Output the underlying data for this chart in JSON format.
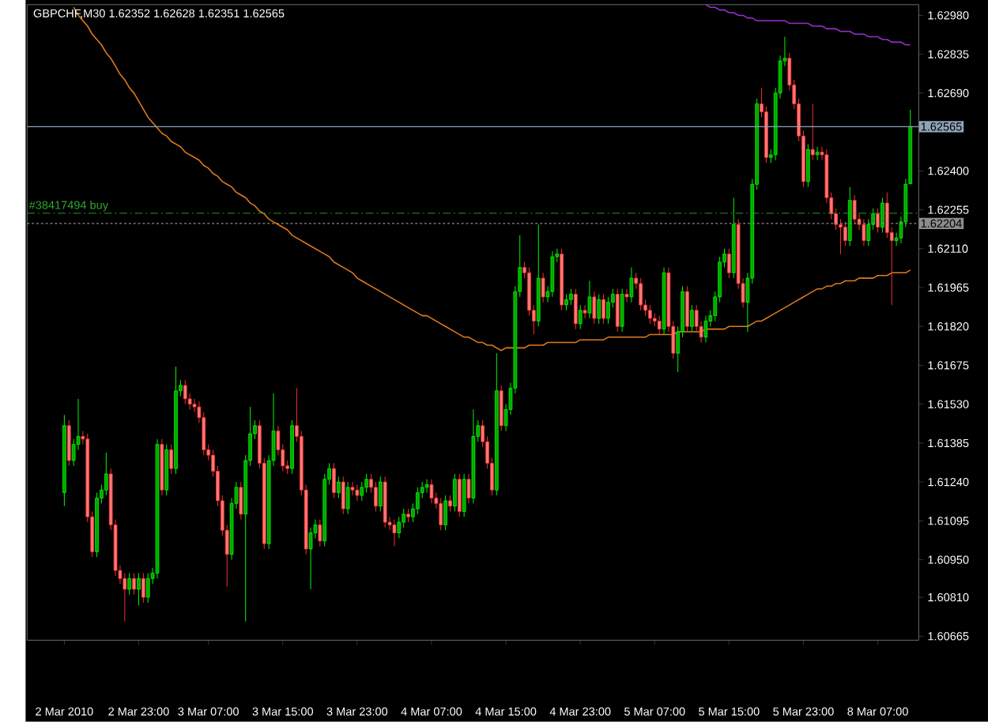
{
  "chart_data": {
    "type": "candlestick",
    "title": "GBPCHF,M30  1.62352 1.62628 1.62351 1.62565",
    "categories": [
      "2 Mar 2010",
      null,
      null,
      null,
      null,
      null,
      null,
      null,
      null,
      null,
      null,
      null,
      null,
      null,
      null,
      null,
      "2 Mar 23:00",
      null,
      null,
      null,
      null,
      null,
      null,
      null,
      null,
      null,
      null,
      null,
      null,
      null,
      null,
      "3 Mar 07:00",
      null,
      null,
      null,
      null,
      null,
      null,
      null,
      null,
      null,
      null,
      null,
      null,
      null,
      null,
      null,
      "3 Mar 15:00",
      null,
      null,
      null,
      null,
      null,
      null,
      null,
      null,
      null,
      null,
      null,
      null,
      null,
      null,
      null,
      "3 Mar 23:00",
      null,
      null,
      null,
      null,
      null,
      null,
      null,
      null,
      null,
      null,
      null,
      null,
      null,
      null,
      null,
      "4 Mar 07:00",
      null,
      null,
      null,
      null,
      null,
      null,
      null,
      null,
      null,
      null,
      null,
      null,
      null,
      null,
      null,
      "4 Mar 15:00",
      null,
      null,
      null,
      null,
      null,
      null,
      null,
      null,
      null,
      null,
      null,
      null,
      null,
      null,
      null,
      "4 Mar 23:00",
      null,
      null,
      null,
      null,
      null,
      null,
      null,
      null,
      null,
      null,
      null,
      null,
      null,
      null,
      null,
      "5 Mar 07:00",
      null,
      null,
      null,
      null,
      null,
      null,
      null,
      null,
      null,
      null,
      null,
      null,
      null,
      null,
      null,
      "5 Mar 15:00",
      null,
      null,
      null,
      null,
      null,
      null,
      null,
      null,
      null,
      null,
      null,
      null,
      null,
      null,
      null,
      "5 Mar 23:00",
      null,
      null,
      null,
      null,
      null,
      null,
      null,
      null,
      null,
      null,
      null,
      null,
      null,
      null,
      null,
      "8 Mar 07:00",
      null,
      null,
      null,
      null,
      null,
      null,
      null
    ],
    "ohlc": [
      [
        1.612,
        1.6149,
        1.6115,
        1.6145
      ],
      [
        1.6145,
        1.6147,
        1.613,
        1.6132
      ],
      [
        1.6132,
        1.614,
        1.613,
        1.6138
      ],
      [
        1.6138,
        1.6155,
        1.6136,
        1.6141
      ],
      [
        1.6141,
        1.6143,
        1.6138,
        1.614
      ],
      [
        1.614,
        1.6142,
        1.6109,
        1.6111
      ],
      [
        1.6111,
        1.6113,
        1.6096,
        1.6098
      ],
      [
        1.6098,
        1.612,
        1.6096,
        1.6118
      ],
      [
        1.6118,
        1.6123,
        1.6116,
        1.6121
      ],
      [
        1.6121,
        1.6135,
        1.6119,
        1.6127
      ],
      [
        1.6127,
        1.6129,
        1.6106,
        1.6108
      ],
      [
        1.6108,
        1.611,
        1.6089,
        1.6091
      ],
      [
        1.6091,
        1.6093,
        1.6086,
        1.6088
      ],
      [
        1.6088,
        1.609,
        1.6072,
        1.6084
      ],
      [
        1.6084,
        1.609,
        1.6082,
        1.6088
      ],
      [
        1.6088,
        1.609,
        1.6082,
        1.6084
      ],
      [
        1.6084,
        1.609,
        1.6078,
        1.6088
      ],
      [
        1.6088,
        1.609,
        1.6079,
        1.6081
      ],
      [
        1.6081,
        1.609,
        1.6079,
        1.6088
      ],
      [
        1.6088,
        1.6092,
        1.6086,
        1.609
      ],
      [
        1.609,
        1.614,
        1.6088,
        1.6138
      ],
      [
        1.6138,
        1.614,
        1.6119,
        1.6121
      ],
      [
        1.6121,
        1.6138,
        1.6119,
        1.6136
      ],
      [
        1.6136,
        1.6138,
        1.6127,
        1.6129
      ],
      [
        1.6129,
        1.6167,
        1.6127,
        1.6158
      ],
      [
        1.6158,
        1.6162,
        1.6156,
        1.616
      ],
      [
        1.616,
        1.6162,
        1.6153,
        1.6155
      ],
      [
        1.6155,
        1.6157,
        1.6151,
        1.6153
      ],
      [
        1.6153,
        1.6155,
        1.615,
        1.6152
      ],
      [
        1.6152,
        1.6154,
        1.6146,
        1.6148
      ],
      [
        1.6148,
        1.615,
        1.6134,
        1.6136
      ],
      [
        1.6136,
        1.6138,
        1.6132,
        1.6134
      ],
      [
        1.6134,
        1.6136,
        1.6126,
        1.6128
      ],
      [
        1.6128,
        1.613,
        1.6115,
        1.6117
      ],
      [
        1.6117,
        1.6119,
        1.6104,
        1.6106
      ],
      [
        1.6106,
        1.6108,
        1.6085,
        1.6097
      ],
      [
        1.6097,
        1.6118,
        1.6095,
        1.6116
      ],
      [
        1.6116,
        1.6124,
        1.6114,
        1.6122
      ],
      [
        1.6122,
        1.6124,
        1.611,
        1.6112
      ],
      [
        1.6112,
        1.6134,
        1.6072,
        1.6132
      ],
      [
        1.6132,
        1.6152,
        1.613,
        1.6142
      ],
      [
        1.6142,
        1.6147,
        1.614,
        1.6145
      ],
      [
        1.6145,
        1.6147,
        1.6129,
        1.6131
      ],
      [
        1.6131,
        1.6133,
        1.6099,
        1.6101
      ],
      [
        1.6101,
        1.6134,
        1.6099,
        1.6132
      ],
      [
        1.6132,
        1.6157,
        1.613,
        1.6143
      ],
      [
        1.6143,
        1.6145,
        1.6134,
        1.6136
      ],
      [
        1.6136,
        1.6138,
        1.6128,
        1.613
      ],
      [
        1.613,
        1.6132,
        1.6127,
        1.6129
      ],
      [
        1.6129,
        1.6147,
        1.6127,
        1.6145
      ],
      [
        1.6145,
        1.6159,
        1.6139,
        1.6141
      ],
      [
        1.6141,
        1.6143,
        1.6119,
        1.6121
      ],
      [
        1.6121,
        1.6123,
        1.6097,
        1.6099
      ],
      [
        1.6099,
        1.6107,
        1.6084,
        1.6105
      ],
      [
        1.6105,
        1.611,
        1.6103,
        1.6108
      ],
      [
        1.6108,
        1.611,
        1.61,
        1.6102
      ],
      [
        1.6102,
        1.6127,
        1.61,
        1.6125
      ],
      [
        1.6125,
        1.6131,
        1.6123,
        1.6129
      ],
      [
        1.6129,
        1.6131,
        1.6118,
        1.612
      ],
      [
        1.612,
        1.6126,
        1.6118,
        1.6124
      ],
      [
        1.6124,
        1.6126,
        1.6112,
        1.6114
      ],
      [
        1.6114,
        1.6124,
        1.6112,
        1.6122
      ],
      [
        1.6122,
        1.6124,
        1.6119,
        1.6121
      ],
      [
        1.6121,
        1.6123,
        1.6117,
        1.6119
      ],
      [
        1.6119,
        1.6124,
        1.6117,
        1.6122
      ],
      [
        1.6122,
        1.6127,
        1.612,
        1.6125
      ],
      [
        1.6125,
        1.6127,
        1.612,
        1.6122
      ],
      [
        1.6122,
        1.6124,
        1.6113,
        1.6115
      ],
      [
        1.6115,
        1.6126,
        1.6113,
        1.6124
      ],
      [
        1.6124,
        1.6126,
        1.6107,
        1.6109
      ],
      [
        1.6109,
        1.6111,
        1.6106,
        1.6108
      ],
      [
        1.6108,
        1.611,
        1.61,
        1.6105
      ],
      [
        1.6105,
        1.6111,
        1.6103,
        1.6109
      ],
      [
        1.6109,
        1.6114,
        1.6107,
        1.6112
      ],
      [
        1.6112,
        1.6114,
        1.6109,
        1.6111
      ],
      [
        1.6111,
        1.6116,
        1.6109,
        1.6114
      ],
      [
        1.6114,
        1.6122,
        1.6112,
        1.612
      ],
      [
        1.612,
        1.6124,
        1.6118,
        1.6122
      ],
      [
        1.6122,
        1.6125,
        1.612,
        1.6123
      ],
      [
        1.6123,
        1.6125,
        1.6116,
        1.6118
      ],
      [
        1.6118,
        1.612,
        1.6114,
        1.6116
      ],
      [
        1.6116,
        1.6118,
        1.6106,
        1.6108
      ],
      [
        1.6108,
        1.6119,
        1.6106,
        1.6117
      ],
      [
        1.6117,
        1.6119,
        1.6113,
        1.6115
      ],
      [
        1.6115,
        1.6127,
        1.6113,
        1.6125
      ],
      [
        1.6125,
        1.6127,
        1.6111,
        1.6113
      ],
      [
        1.6113,
        1.6127,
        1.6111,
        1.6125
      ],
      [
        1.6125,
        1.6127,
        1.6116,
        1.6118
      ],
      [
        1.6118,
        1.6151,
        1.6116,
        1.6141
      ],
      [
        1.6141,
        1.6147,
        1.6139,
        1.6145
      ],
      [
        1.6145,
        1.6147,
        1.6137,
        1.6139
      ],
      [
        1.6139,
        1.6141,
        1.6129,
        1.6131
      ],
      [
        1.6131,
        1.6133,
        1.6119,
        1.6121
      ],
      [
        1.6121,
        1.6172,
        1.6119,
        1.6158
      ],
      [
        1.6158,
        1.616,
        1.6143,
        1.6145
      ],
      [
        1.6145,
        1.6153,
        1.6143,
        1.6151
      ],
      [
        1.6151,
        1.6161,
        1.6149,
        1.6159
      ],
      [
        1.6159,
        1.6197,
        1.6157,
        1.6195
      ],
      [
        1.6195,
        1.6216,
        1.6193,
        1.6204
      ],
      [
        1.6204,
        1.6206,
        1.62,
        1.6202
      ],
      [
        1.6202,
        1.6204,
        1.6186,
        1.6188
      ],
      [
        1.6188,
        1.619,
        1.6179,
        1.6184
      ],
      [
        1.6184,
        1.622,
        1.6182,
        1.62
      ],
      [
        1.62,
        1.6202,
        1.6191,
        1.6193
      ],
      [
        1.6193,
        1.6197,
        1.6191,
        1.6195
      ],
      [
        1.6195,
        1.621,
        1.6193,
        1.6208
      ],
      [
        1.6208,
        1.6211,
        1.6206,
        1.6209
      ],
      [
        1.6209,
        1.6211,
        1.6188,
        1.619
      ],
      [
        1.619,
        1.6194,
        1.6188,
        1.6192
      ],
      [
        1.6192,
        1.6196,
        1.619,
        1.6194
      ],
      [
        1.6194,
        1.6196,
        1.6181,
        1.6183
      ],
      [
        1.6183,
        1.619,
        1.6181,
        1.6188
      ],
      [
        1.6188,
        1.619,
        1.6185,
        1.6187
      ],
      [
        1.6187,
        1.6199,
        1.6185,
        1.6193
      ],
      [
        1.6193,
        1.6195,
        1.6183,
        1.6185
      ],
      [
        1.6185,
        1.6194,
        1.6183,
        1.6192
      ],
      [
        1.6192,
        1.6194,
        1.6183,
        1.6185
      ],
      [
        1.6185,
        1.6193,
        1.6183,
        1.6191
      ],
      [
        1.6191,
        1.6196,
        1.6189,
        1.6194
      ],
      [
        1.6194,
        1.6196,
        1.618,
        1.6182
      ],
      [
        1.6182,
        1.6196,
        1.618,
        1.6194
      ],
      [
        1.6194,
        1.6196,
        1.6191,
        1.6193
      ],
      [
        1.6193,
        1.6204,
        1.6191,
        1.62
      ],
      [
        1.62,
        1.6202,
        1.6196,
        1.6198
      ],
      [
        1.6198,
        1.62,
        1.6188,
        1.619
      ],
      [
        1.619,
        1.6192,
        1.6186,
        1.6188
      ],
      [
        1.6188,
        1.619,
        1.6183,
        1.6185
      ],
      [
        1.6185,
        1.6187,
        1.6182,
        1.6184
      ],
      [
        1.6184,
        1.6186,
        1.6179,
        1.6181
      ],
      [
        1.6181,
        1.6204,
        1.6179,
        1.6202
      ],
      [
        1.6202,
        1.6204,
        1.618,
        1.6182
      ],
      [
        1.6182,
        1.6184,
        1.617,
        1.6172
      ],
      [
        1.6172,
        1.6182,
        1.6165,
        1.618
      ],
      [
        1.618,
        1.6197,
        1.6178,
        1.6195
      ],
      [
        1.6195,
        1.6197,
        1.618,
        1.6182
      ],
      [
        1.6182,
        1.619,
        1.618,
        1.6188
      ],
      [
        1.6188,
        1.619,
        1.618,
        1.6182
      ],
      [
        1.6182,
        1.6184,
        1.6176,
        1.6178
      ],
      [
        1.6178,
        1.6186,
        1.6176,
        1.6184
      ],
      [
        1.6184,
        1.6188,
        1.6182,
        1.6186
      ],
      [
        1.6186,
        1.6195,
        1.6184,
        1.6193
      ],
      [
        1.6193,
        1.6208,
        1.6191,
        1.6206
      ],
      [
        1.6206,
        1.6211,
        1.6204,
        1.6209
      ],
      [
        1.6209,
        1.6211,
        1.62,
        1.6202
      ],
      [
        1.6202,
        1.623,
        1.62,
        1.622
      ],
      [
        1.622,
        1.6222,
        1.6196,
        1.6198
      ],
      [
        1.6198,
        1.62,
        1.6189,
        1.6191
      ],
      [
        1.6191,
        1.6202,
        1.618,
        1.62
      ],
      [
        1.62,
        1.6237,
        1.6198,
        1.6235
      ],
      [
        1.6235,
        1.6267,
        1.6233,
        1.6265
      ],
      [
        1.6265,
        1.6271,
        1.626,
        1.6262
      ],
      [
        1.6262,
        1.6264,
        1.6243,
        1.6245
      ],
      [
        1.6245,
        1.6248,
        1.6243,
        1.6246
      ],
      [
        1.6246,
        1.6271,
        1.6244,
        1.6269
      ],
      [
        1.6269,
        1.6283,
        1.6267,
        1.6281
      ],
      [
        1.6281,
        1.629,
        1.6279,
        1.6282
      ],
      [
        1.6282,
        1.6284,
        1.627,
        1.6272
      ],
      [
        1.6272,
        1.6274,
        1.6263,
        1.6265
      ],
      [
        1.6265,
        1.6267,
        1.6251,
        1.6253
      ],
      [
        1.6253,
        1.6255,
        1.6234,
        1.6236
      ],
      [
        1.6236,
        1.625,
        1.6234,
        1.6248
      ],
      [
        1.6248,
        1.6265,
        1.6244,
        1.6246
      ],
      [
        1.6246,
        1.6249,
        1.6244,
        1.6247
      ],
      [
        1.6247,
        1.6249,
        1.6244,
        1.6246
      ],
      [
        1.6246,
        1.6248,
        1.6228,
        1.623
      ],
      [
        1.623,
        1.6232,
        1.6222,
        1.6224
      ],
      [
        1.6224,
        1.6226,
        1.6218,
        1.622
      ],
      [
        1.622,
        1.6222,
        1.6209,
        1.6219
      ],
      [
        1.6219,
        1.6221,
        1.6212,
        1.6214
      ],
      [
        1.6214,
        1.6234,
        1.6212,
        1.6229
      ],
      [
        1.6229,
        1.6231,
        1.622,
        1.6222
      ],
      [
        1.6222,
        1.6224,
        1.6218,
        1.622
      ],
      [
        1.622,
        1.6222,
        1.6212,
        1.6214
      ],
      [
        1.6214,
        1.6222,
        1.6212,
        1.622
      ],
      [
        1.622,
        1.6226,
        1.6218,
        1.6224
      ],
      [
        1.6224,
        1.6226,
        1.6217,
        1.6219
      ],
      [
        1.6219,
        1.623,
        1.6217,
        1.6228
      ],
      [
        1.6228,
        1.6232,
        1.6215,
        1.6217
      ],
      [
        1.6217,
        1.6219,
        1.619,
        1.6214
      ],
      [
        1.6214,
        1.6217,
        1.6212,
        1.6215
      ],
      [
        1.6215,
        1.6223,
        1.6213,
        1.6221
      ],
      [
        1.6221,
        1.6237,
        1.6219,
        1.6235
      ],
      [
        1.62352,
        1.62628,
        1.62351,
        1.62565
      ]
    ],
    "series": [
      {
        "type": "line",
        "color": "#e07b20",
        "values": [
          null,
          null,
          1.6301,
          1.6298,
          1.6296,
          1.6294,
          1.6291,
          1.6289,
          1.6287,
          1.6284,
          1.6282,
          1.6279,
          1.6276,
          1.6274,
          1.6271,
          1.6269,
          1.6266,
          1.6263,
          1.626,
          1.6258,
          1.6256,
          1.6254,
          1.6253,
          1.6251,
          1.625,
          1.6249,
          1.6247,
          1.6246,
          1.6245,
          1.6244,
          1.6242,
          1.6241,
          1.6239,
          1.6238,
          1.6236,
          1.6235,
          1.6234,
          1.6232,
          1.6231,
          1.623,
          1.6228,
          1.6227,
          1.6225,
          1.6224,
          1.6222,
          1.6221,
          1.622,
          1.6219,
          1.6218,
          1.6216,
          1.6215,
          1.6214,
          1.6213,
          1.6212,
          1.6211,
          1.621,
          1.6209,
          1.6208,
          1.6206,
          1.6205,
          1.6204,
          1.6203,
          1.6202,
          1.62,
          1.6199,
          1.6198,
          1.6197,
          1.6196,
          1.6195,
          1.6194,
          1.6193,
          1.6192,
          1.6191,
          1.619,
          1.6189,
          1.6188,
          1.6187,
          1.6186,
          1.6186,
          1.6185,
          1.6184,
          1.6183,
          1.6182,
          1.6181,
          1.618,
          1.6179,
          1.6178,
          1.6178,
          1.6177,
          1.6176,
          1.6176,
          1.6175,
          1.6175,
          1.6174,
          1.6173,
          1.6174,
          1.6174,
          1.6174,
          1.6174,
          1.6174,
          1.6175,
          1.6175,
          1.6175,
          1.6175,
          1.6176,
          1.6176,
          1.6176,
          1.6176,
          1.6176,
          1.6176,
          1.6176,
          1.6177,
          1.6177,
          1.6177,
          1.6177,
          1.6177,
          1.6177,
          1.6178,
          1.6178,
          1.6178,
          1.6178,
          1.6178,
          1.6178,
          1.6178,
          1.6178,
          1.6178,
          1.6179,
          1.6179,
          1.6179,
          1.6179,
          1.6179,
          1.6179,
          1.618,
          1.618,
          1.618,
          1.618,
          1.618,
          1.618,
          1.6181,
          1.6181,
          1.6181,
          1.6181,
          1.6181,
          1.6182,
          1.6182,
          1.6182,
          1.6182,
          1.6182,
          1.6183,
          1.6184,
          1.6184,
          1.6185,
          1.6186,
          1.6187,
          1.6188,
          1.6189,
          1.619,
          1.6191,
          1.6192,
          1.6193,
          1.6194,
          1.6195,
          1.6196,
          1.6196,
          1.6197,
          1.6197,
          1.6198,
          1.6198,
          1.6199,
          1.6199,
          1.6199,
          1.62,
          1.62,
          1.62,
          1.62,
          1.6201,
          1.6201,
          1.6201,
          1.6202,
          1.6202,
          1.6202,
          1.6202,
          1.6203
        ]
      },
      {
        "type": "line",
        "color": "#9a2fd0",
        "values": [
          null,
          null,
          null,
          null,
          null,
          null,
          null,
          null,
          null,
          null,
          null,
          null,
          null,
          null,
          null,
          null,
          null,
          null,
          null,
          null,
          null,
          null,
          null,
          null,
          null,
          null,
          null,
          null,
          null,
          null,
          null,
          null,
          null,
          null,
          null,
          null,
          null,
          null,
          null,
          null,
          null,
          null,
          null,
          null,
          null,
          null,
          null,
          null,
          null,
          null,
          null,
          null,
          null,
          null,
          null,
          null,
          null,
          null,
          null,
          null,
          null,
          null,
          null,
          null,
          null,
          null,
          null,
          null,
          null,
          null,
          null,
          null,
          null,
          null,
          null,
          null,
          null,
          null,
          null,
          null,
          null,
          null,
          null,
          null,
          null,
          null,
          null,
          null,
          null,
          null,
          null,
          null,
          null,
          null,
          null,
          null,
          null,
          null,
          null,
          null,
          null,
          null,
          null,
          null,
          null,
          null,
          null,
          null,
          null,
          null,
          null,
          null,
          null,
          null,
          null,
          null,
          null,
          null,
          null,
          null,
          null,
          null,
          null,
          null,
          null,
          null,
          null,
          null,
          null,
          null,
          null,
          null,
          null,
          null,
          null,
          null,
          null,
          null,
          1.6302,
          1.6301,
          1.6301,
          1.63,
          1.63,
          1.6299,
          1.6299,
          1.6298,
          1.6298,
          1.6297,
          1.6297,
          1.6296,
          1.6296,
          1.6296,
          1.6296,
          1.6296,
          1.6296,
          1.6296,
          1.6295,
          1.6295,
          1.6295,
          1.6295,
          1.6295,
          1.6294,
          1.6294,
          1.6294,
          1.6293,
          1.6293,
          1.6293,
          1.6292,
          1.6292,
          1.6292,
          1.6291,
          1.6291,
          1.6291,
          1.629,
          1.629,
          1.629,
          1.6289,
          1.6289,
          1.6288,
          1.6288,
          1.6288,
          1.6287,
          1.6287
        ]
      }
    ],
    "ylim": [
      1.6065,
      1.6302
    ],
    "yticks": [
      {
        "value": 1.6298,
        "label": "1.62980"
      },
      1.62835,
      {
        "value": 1.6269,
        "label": "1.62690"
      },
      {
        "value": 1.624,
        "label": "1.62400"
      },
      1.62255,
      {
        "value": 1.6211,
        "label": "1.62110"
      },
      1.61965,
      {
        "value": 1.6182,
        "label": "1.61820"
      },
      1.61675,
      {
        "value": 1.6153,
        "label": "1.61530"
      },
      1.61385,
      {
        "value": 1.6124,
        "label": "1.61240"
      },
      1.61095,
      {
        "value": 1.6095,
        "label": "1.60950"
      },
      {
        "value": 1.6081,
        "label": "1.60810"
      },
      1.60665
    ],
    "ref_lines": [
      {
        "axis": "y",
        "value": 1.62565,
        "label": "1.62565",
        "color": "#8fa3b8",
        "line_style": "solid"
      },
      {
        "axis": "y",
        "value": 1.62242,
        "label": "#38417494 buy",
        "color": "#2fa82f",
        "line_style": "dashed"
      },
      {
        "axis": "y",
        "value": 1.62204,
        "label": "1.62204",
        "color": "#8c8c8c",
        "line_style": "dotted"
      }
    ]
  }
}
